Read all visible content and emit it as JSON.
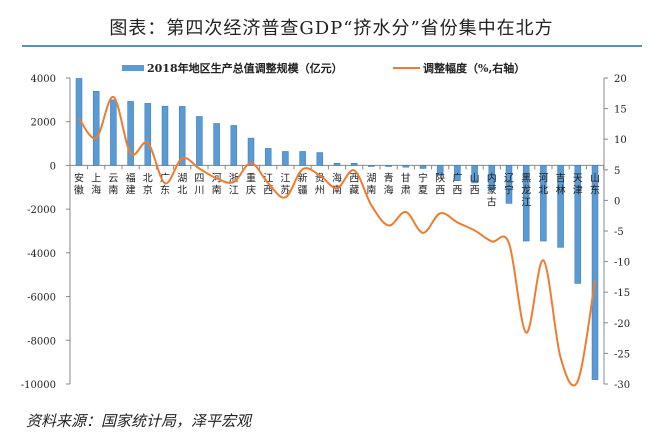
{
  "title": "图表：第四次经济普查GDP“挤水分”省份集中在北方",
  "source": "资料来源：国家统计局，泽平宏观",
  "chart_data": {
    "type": "bar+line",
    "categories": [
      "安徽",
      "上海",
      "云南",
      "福建",
      "北京",
      "广东",
      "湖北",
      "四川",
      "河南",
      "浙江",
      "重庆",
      "江西",
      "江苏",
      "新疆",
      "贵州",
      "海南",
      "西藏",
      "湖南",
      "青海",
      "甘肃",
      "宁夏",
      "陕西",
      "广西",
      "山西",
      "内蒙古",
      "辽宁",
      "黑龙江",
      "河北",
      "吉林",
      "天津",
      "山东"
    ],
    "series": [
      {
        "name": "2018年地区生产总值调整规模（亿元）",
        "type": "bar",
        "axis": "left",
        "color": "#5b9bd5",
        "values": [
          3980,
          3390,
          3000,
          2930,
          2840,
          2710,
          2700,
          2240,
          1920,
          1830,
          1250,
          780,
          640,
          640,
          590,
          100,
          100,
          -50,
          -50,
          -80,
          -140,
          -450,
          -700,
          -800,
          -1100,
          -1740,
          -3460,
          -3460,
          -3750,
          -5400,
          -9800
        ]
      },
      {
        "name": "调整幅度（%,右轴）",
        "type": "line",
        "axis": "right",
        "color": "#ed7d31",
        "values": [
          13.4,
          10.2,
          16.9,
          7.7,
          9.4,
          2.8,
          6.9,
          5.2,
          3.6,
          3.0,
          6.1,
          2.8,
          0.5,
          5.1,
          4.1,
          2.0,
          4.9,
          -0.8,
          -4.1,
          -1.9,
          -5.3,
          -2.1,
          -3.6,
          -4.9,
          -6.7,
          -7.0,
          -21.6,
          -9.8,
          -25.7,
          -29.5,
          -13.1
        ]
      }
    ],
    "left_axis": {
      "range": [
        -10000,
        4000
      ],
      "ticks": [
        "4000",
        "2000",
        "0",
        "-2000",
        "-4000",
        "-6000",
        "-8000",
        "-10000"
      ]
    },
    "right_axis": {
      "range": [
        -30,
        20
      ],
      "ticks": [
        "20",
        "15",
        "10",
        "5",
        "0",
        "-5",
        "-10",
        "-15",
        "-20",
        "-25",
        "-30"
      ]
    },
    "legend_placement": "top",
    "grid": false
  }
}
